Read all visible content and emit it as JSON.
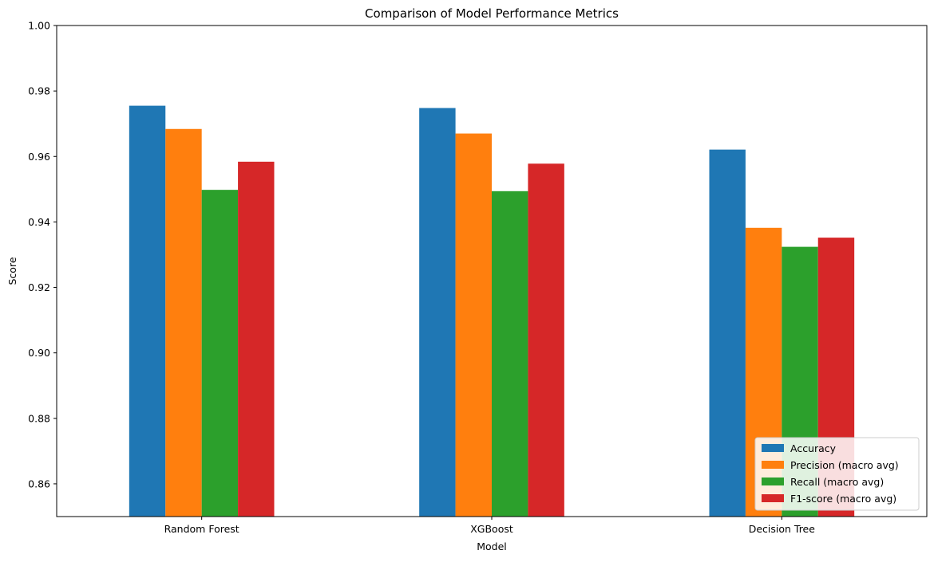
{
  "chart_data": {
    "type": "bar",
    "title": "Comparison of Model Performance Metrics",
    "xlabel": "Model",
    "ylabel": "Score",
    "categories": [
      "Random Forest",
      "XGBoost",
      "Decision Tree"
    ],
    "series": [
      {
        "name": "Accuracy",
        "color": "#1f77b4",
        "values": [
          0.9755,
          0.9748,
          0.9621
        ]
      },
      {
        "name": "Precision (macro avg)",
        "color": "#ff7f0e",
        "values": [
          0.9684,
          0.967,
          0.9382
        ]
      },
      {
        "name": "Recall (macro avg)",
        "color": "#2ca02c",
        "values": [
          0.9498,
          0.9494,
          0.9324
        ]
      },
      {
        "name": "F1-score (macro avg)",
        "color": "#d62728",
        "values": [
          0.9584,
          0.9578,
          0.9352
        ]
      }
    ],
    "ylim": [
      0.85,
      1.0
    ],
    "yticks": [
      0.86,
      0.88,
      0.9,
      0.92,
      0.94,
      0.96,
      0.98,
      1.0
    ],
    "ytick_labels": [
      "0.86",
      "0.88",
      "0.90",
      "0.92",
      "0.94",
      "0.96",
      "0.98",
      "1.00"
    ],
    "grid": false,
    "legend_position": "lower-right"
  }
}
